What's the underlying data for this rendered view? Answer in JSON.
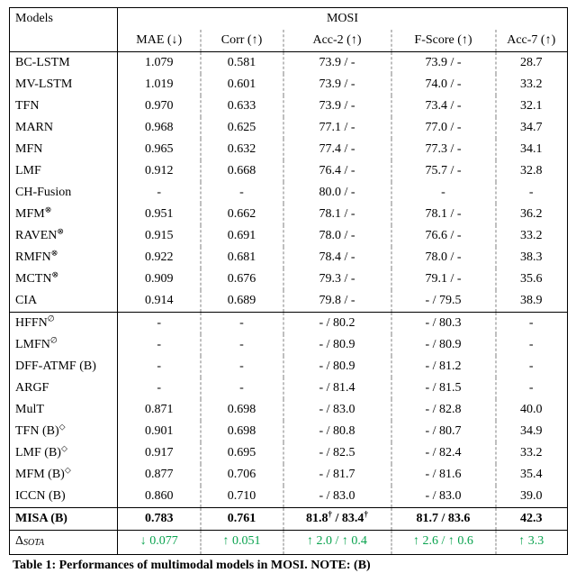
{
  "table": {
    "header": {
      "models": "Models",
      "super": "MOSI",
      "cols": [
        "MAE (↓)",
        "Corr (↑)",
        "Acc-2 (↑)",
        "F-Score (↑)",
        "Acc-7 (↑)"
      ]
    },
    "groups": [
      [
        {
          "m": "BC-LSTM",
          "mae": "1.079",
          "corr": "0.581",
          "a2": "73.9 / -",
          "fs": "73.9 / -",
          "a7": "28.7"
        },
        {
          "m": "MV-LSTM",
          "mae": "1.019",
          "corr": "0.601",
          "a2": "73.9 / -",
          "fs": "74.0 / -",
          "a7": "33.2"
        },
        {
          "m": "TFN",
          "mae": "0.970",
          "corr": "0.633",
          "a2": "73.9 / -",
          "fs": "73.4 / -",
          "a7": "32.1"
        },
        {
          "m": "MARN",
          "mae": "0.968",
          "corr": "0.625",
          "a2": "77.1 / -",
          "fs": "77.0 / -",
          "a7": "34.7"
        },
        {
          "m": "MFN",
          "mae": "0.965",
          "corr": "0.632",
          "a2": "77.4 / -",
          "fs": "77.3 / -",
          "a7": "34.1"
        },
        {
          "m": "LMF",
          "mae": "0.912",
          "corr": "0.668",
          "a2": "76.4 / -",
          "fs": "75.7 / -",
          "a7": "32.8"
        },
        {
          "m": "CH-Fusion",
          "mae": "-",
          "corr": "-",
          "a2": "80.0 / -",
          "fs": "-",
          "a7": "-"
        },
        {
          "m": "MFM",
          "sup": "⊗",
          "mae": "0.951",
          "corr": "0.662",
          "a2": "78.1 / -",
          "fs": "78.1 / -",
          "a7": "36.2"
        },
        {
          "m": "RAVEN",
          "sup": "⊗",
          "mae": "0.915",
          "corr": "0.691",
          "a2": "78.0 / -",
          "fs": "76.6 / -",
          "a7": "33.2"
        },
        {
          "m": "RMFN",
          "sup": "⊗",
          "mae": "0.922",
          "corr": "0.681",
          "a2": "78.4 / -",
          "fs": "78.0 / -",
          "a7": "38.3"
        },
        {
          "m": "MCTN",
          "sup": "⊗",
          "mae": "0.909",
          "corr": "0.676",
          "a2": "79.3 / -",
          "fs": "79.1 / -",
          "a7": "35.6"
        },
        {
          "m": "CIA",
          "mae": "0.914",
          "corr": "0.689",
          "a2": "79.8 / -",
          "fs": "- / 79.5",
          "a7": "38.9"
        }
      ],
      [
        {
          "m": "HFFN",
          "sup": "∅",
          "mae": "-",
          "corr": "-",
          "a2": "- / 80.2",
          "fs": "- / 80.3",
          "a7": "-"
        },
        {
          "m": "LMFN",
          "sup": "∅",
          "mae": "-",
          "corr": "-",
          "a2": "- / 80.9",
          "fs": "- / 80.9",
          "a7": "-"
        },
        {
          "m": "DFF-ATMF (B)",
          "mae": "-",
          "corr": "-",
          "a2": "- / 80.9",
          "fs": "- / 81.2",
          "a7": "-"
        },
        {
          "m": "ARGF",
          "mae": "-",
          "corr": "-",
          "a2": "- / 81.4",
          "fs": "- / 81.5",
          "a7": "-"
        },
        {
          "m": "MulT",
          "mae": "0.871",
          "corr": "0.698",
          "a2": "- / 83.0",
          "fs": "- / 82.8",
          "a7": "40.0"
        },
        {
          "m": "TFN (B)",
          "sup": "◇",
          "mae": "0.901",
          "corr": "0.698",
          "a2": "- / 80.8",
          "fs": "- / 80.7",
          "a7": "34.9"
        },
        {
          "m": "LMF (B)",
          "sup": "◇",
          "mae": "0.917",
          "corr": "0.695",
          "a2": "- / 82.5",
          "fs": "- / 82.4",
          "a7": "33.2"
        },
        {
          "m": "MFM (B)",
          "sup": "◇",
          "mae": "0.877",
          "corr": "0.706",
          "a2": "- / 81.7",
          "fs": "- / 81.6",
          "a7": "35.4"
        },
        {
          "m": "ICCN (B)",
          "mae": "0.860",
          "corr": "0.710",
          "a2": "- / 83.0",
          "fs": "- / 83.0",
          "a7": "39.0"
        }
      ],
      [
        {
          "m": "MISA (B)",
          "mae": "0.783",
          "corr": "0.761",
          "a2": "81.8† / 83.4†",
          "fs": "81.7 / 83.6",
          "a7": "42.3",
          "bold": true,
          "a2dag": true
        }
      ],
      [
        {
          "m": "Δ_SOTA",
          "mae": "↓ 0.077",
          "corr": "↑ 0.051",
          "a2": "↑ 2.0 / ↑ 0.4",
          "fs": "↑ 2.6 / ↑ 0.6",
          "a7": "↑ 3.3",
          "green": true,
          "msub": true
        }
      ]
    ]
  },
  "caption": "Table 1: Performances of multimodal models in MOSI. NOTE: (B)"
}
